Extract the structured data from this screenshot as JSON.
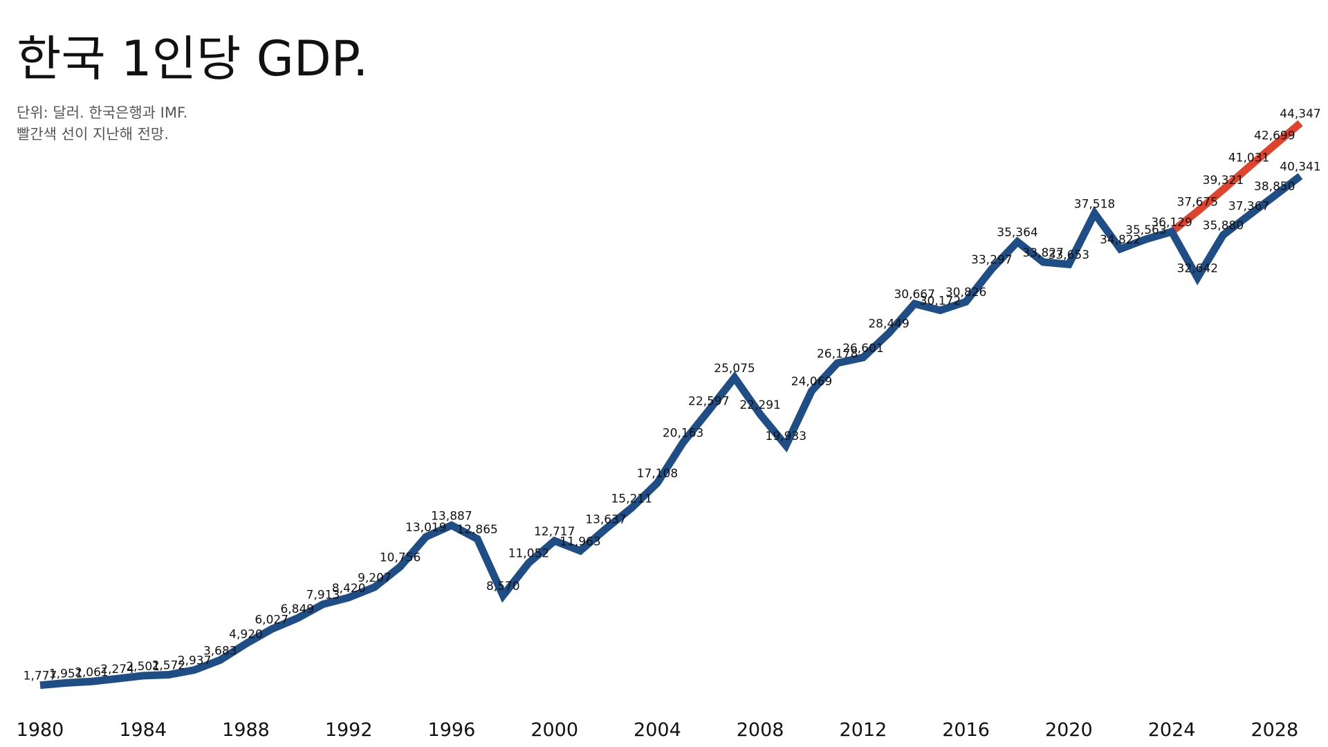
{
  "chart_data": {
    "type": "line",
    "title": "한국 1인당 GDP.",
    "subtitle_lines": [
      "단위: 달러. 한국은행과 IMF.",
      "빨간색 선이 지난해 전망."
    ],
    "x_ticks": [
      1980,
      1984,
      1988,
      1992,
      1996,
      2000,
      2004,
      2008,
      2012,
      2016,
      2020,
      2024,
      2028
    ],
    "xlim": [
      1980,
      2029
    ],
    "ylim": [
      1500,
      46500
    ],
    "grid": false,
    "legend": "none",
    "series": [
      {
        "color": "#1f4e86",
        "x": [
          1980,
          1981,
          1982,
          1983,
          1984,
          1985,
          1986,
          1987,
          1988,
          1989,
          1990,
          1991,
          1992,
          1993,
          1994,
          1995,
          1996,
          1997,
          1998,
          1999,
          2000,
          2001,
          2002,
          2003,
          2004,
          2005,
          2006,
          2007,
          2008,
          2009,
          2010,
          2011,
          2012,
          2013,
          2014,
          2015,
          2016,
          2017,
          2018,
          2019,
          2020,
          2021,
          2022,
          2023,
          2024,
          2025,
          2026,
          2027,
          2028,
          2029
        ],
        "values": [
          1777,
          1951,
          2061,
          2274,
          2501,
          2572,
          2937,
          3683,
          4920,
          6027,
          6849,
          7913,
          8420,
          9207,
          10756,
          13019,
          13887,
          12865,
          8570,
          11052,
          12717,
          11963,
          13637,
          15211,
          17108,
          20163,
          22597,
          25075,
          22291,
          19933,
          24069,
          26178,
          26601,
          28449,
          30667,
          30172,
          30826,
          33297,
          35364,
          33827,
          33653,
          37518,
          34822,
          35563,
          36129,
          32642,
          35880,
          37367,
          38850,
          40341
        ],
        "labels": [
          "1,777",
          "1,951",
          "2,061",
          "2,274",
          "2,501",
          "2,572",
          "2,937",
          "3,683",
          "4,920",
          "6,027",
          "6,849",
          "7,913",
          "8,420",
          "9,207",
          "10,756",
          "13,019",
          "13,887",
          "12,865",
          "8,570",
          "11,052",
          "12,717",
          "11,963",
          "13,637",
          "15,211",
          "17,108",
          "20,163",
          "22,597",
          "25,075",
          "22,291",
          "19,933",
          "24,069",
          "26,178",
          "26,601",
          "28,449",
          "30,667",
          "30,172",
          "30,826",
          "33,297",
          "35,364",
          "33,827",
          "33,653",
          "37,518",
          "34,822",
          "35,563",
          "36,129",
          "32,642",
          "35,880",
          "37,367",
          "38,850",
          "40,341"
        ]
      },
      {
        "color": "#e0432b",
        "x": [
          2024,
          2025,
          2026,
          2027,
          2028,
          2029
        ],
        "values": [
          36129,
          37675,
          39321,
          41031,
          42699,
          44347
        ],
        "labels": [
          "",
          "37,675",
          "39,321",
          "41,031",
          "42,699",
          "44,347"
        ]
      }
    ]
  }
}
